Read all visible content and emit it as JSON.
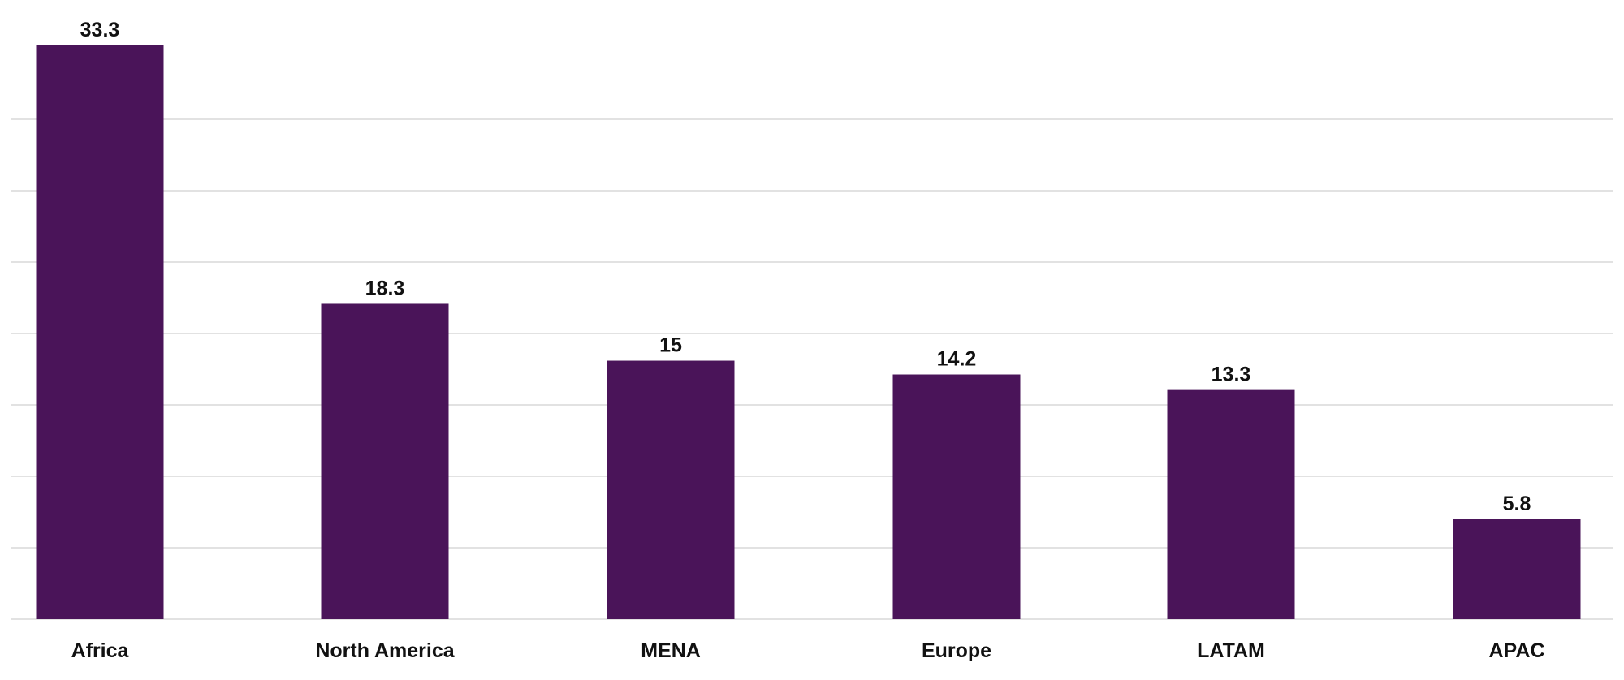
{
  "chart_data": {
    "type": "bar",
    "categories": [
      "Africa",
      "North America",
      "MENA",
      "Europe",
      "LATAM",
      "APAC"
    ],
    "values": [
      33.3,
      18.3,
      15,
      14.2,
      13.3,
      5.8
    ],
    "value_labels": [
      "33.3",
      "18.3",
      "15",
      "14.2",
      "13.3",
      "5.8"
    ],
    "title": "",
    "xlabel": "",
    "ylabel": "",
    "ylim": [
      0,
      35
    ],
    "grid": true,
    "legend": "none",
    "bar_color": "#4a1459",
    "grid_color": "#d0d0d0"
  }
}
